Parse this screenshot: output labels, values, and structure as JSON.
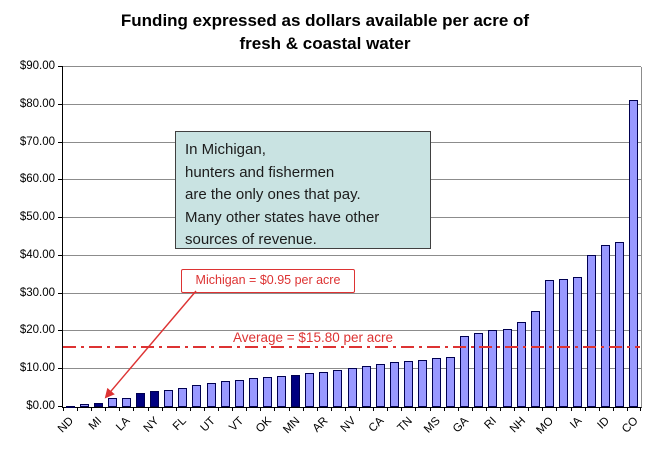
{
  "title": {
    "line1": "Funding expressed as dollars available per acre of",
    "line2": "fresh & coastal water"
  },
  "annotations": {
    "note_box": {
      "lines": [
        "In Michigan,",
        "hunters and fishermen",
        "are the only ones that pay.",
        "Many other states have other",
        "sources of revenue."
      ]
    },
    "michigan_callout": "Michigan = $0.95 per acre",
    "average_label": "Average = $15.80 per acre"
  },
  "colors": {
    "bar_fill": "#9999ff",
    "bar_highlight_fill": "#000080",
    "bar_border": "#000050",
    "gridline": "#8c8c8c",
    "annotation_red": "#dd3333",
    "note_box_bg": "#c9e3e2"
  },
  "chart_data": {
    "type": "bar",
    "title": "Funding expressed as dollars available per acre of fresh & coastal water",
    "xlabel": "",
    "ylabel": "",
    "ylim": [
      0,
      90
    ],
    "grid": true,
    "legend": false,
    "y_tick_labels": [
      "$0.00",
      "$10.00",
      "$20.00",
      "$30.00",
      "$40.00",
      "$50.00",
      "$60.00",
      "$70.00",
      "$80.00",
      "$90.00"
    ],
    "average_line_value": 15.8,
    "michigan_value": 0.95,
    "bars": [
      {
        "label": "ND",
        "value": 0.25,
        "highlight": false
      },
      {
        "label": "",
        "value": 0.8,
        "highlight": false
      },
      {
        "label": "MI",
        "value": 0.95,
        "highlight": true
      },
      {
        "label": "",
        "value": 2.3,
        "highlight": false
      },
      {
        "label": "LA",
        "value": 2.5,
        "highlight": false
      },
      {
        "label": "",
        "value": 3.6,
        "highlight": true
      },
      {
        "label": "NY",
        "value": 4.3,
        "highlight": true
      },
      {
        "label": "",
        "value": 4.5,
        "highlight": false
      },
      {
        "label": "FL",
        "value": 4.9,
        "highlight": false
      },
      {
        "label": "",
        "value": 5.8,
        "highlight": false
      },
      {
        "label": "UT",
        "value": 6.3,
        "highlight": false
      },
      {
        "label": "",
        "value": 6.8,
        "highlight": false
      },
      {
        "label": "VT",
        "value": 7.2,
        "highlight": false
      },
      {
        "label": "",
        "value": 7.6,
        "highlight": false
      },
      {
        "label": "OK",
        "value": 7.9,
        "highlight": false
      },
      {
        "label": "",
        "value": 8.2,
        "highlight": false
      },
      {
        "label": "MN",
        "value": 8.6,
        "highlight": true
      },
      {
        "label": "",
        "value": 8.9,
        "highlight": false
      },
      {
        "label": "AR",
        "value": 9.2,
        "highlight": false
      },
      {
        "label": "",
        "value": 9.8,
        "highlight": false
      },
      {
        "label": "NV",
        "value": 10.3,
        "highlight": false
      },
      {
        "label": "",
        "value": 10.8,
        "highlight": false
      },
      {
        "label": "CA",
        "value": 11.3,
        "highlight": false
      },
      {
        "label": "",
        "value": 11.8,
        "highlight": false
      },
      {
        "label": "TN",
        "value": 12.2,
        "highlight": false
      },
      {
        "label": "",
        "value": 12.5,
        "highlight": false
      },
      {
        "label": "MS",
        "value": 12.9,
        "highlight": false
      },
      {
        "label": "",
        "value": 13.3,
        "highlight": false
      },
      {
        "label": "GA",
        "value": 18.9,
        "highlight": false
      },
      {
        "label": "",
        "value": 19.7,
        "highlight": false
      },
      {
        "label": "RI",
        "value": 20.4,
        "highlight": false
      },
      {
        "label": "",
        "value": 20.7,
        "highlight": false
      },
      {
        "label": "NH",
        "value": 22.4,
        "highlight": false
      },
      {
        "label": "",
        "value": 25.3,
        "highlight": false
      },
      {
        "label": "MO",
        "value": 33.5,
        "highlight": false
      },
      {
        "label": "",
        "value": 33.8,
        "highlight": false
      },
      {
        "label": "IA",
        "value": 34.5,
        "highlight": false
      },
      {
        "label": "",
        "value": 40.2,
        "highlight": false
      },
      {
        "label": "ID",
        "value": 43.0,
        "highlight": false
      },
      {
        "label": "",
        "value": 43.8,
        "highlight": false
      },
      {
        "label": "CO",
        "value": 81.3,
        "highlight": false
      }
    ]
  }
}
